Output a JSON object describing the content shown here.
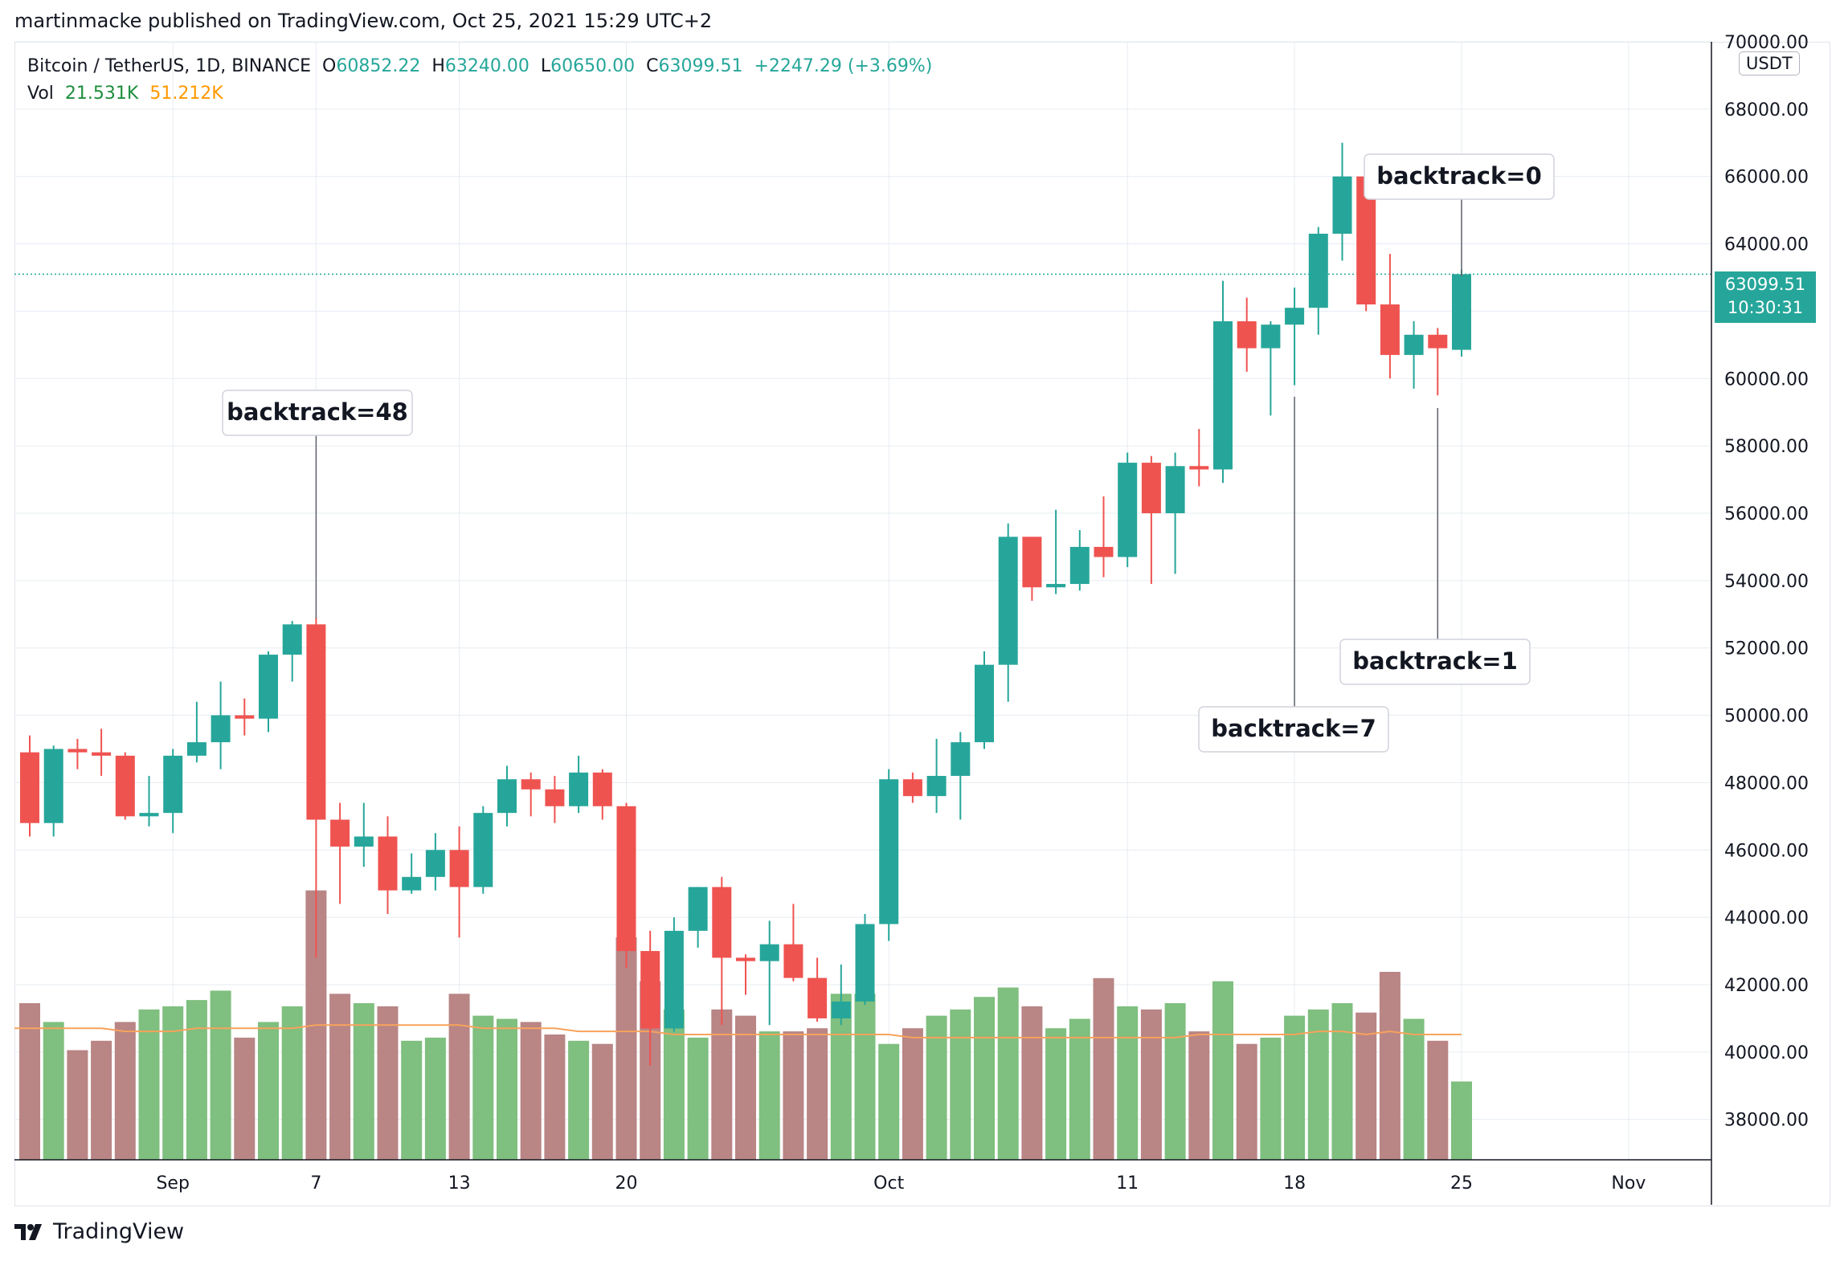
{
  "header": "martinmacke published on TradingView.com, Oct 25, 2021 15:29 UTC+2",
  "footer_brand": "TradingView",
  "legend": {
    "symbol": "Bitcoin / TetherUS, 1D, BINANCE",
    "o_label": "O",
    "o_value": "60852.22",
    "h_label": "H",
    "h_value": "63240.00",
    "l_label": "L",
    "l_value": "60650.00",
    "c_label": "C",
    "c_value": "63099.51",
    "change": "+2247.29 (+3.69%)",
    "vol_label": "Vol",
    "vol_value": "21.531K",
    "vol_ma": "51.212K"
  },
  "price_axis_unit": "USDT",
  "last_price_tag": {
    "price": "63099.51",
    "countdown": "10:30:31"
  },
  "colors": {
    "up": "#26a69a",
    "down": "#ef5350",
    "vol_up": "#7fbf7f",
    "vol_down": "#b98585",
    "ma": "#f7a35c",
    "grid": "#e6ecf2"
  },
  "chart_data": {
    "type": "candlestick",
    "symbol": "BTCUSDT",
    "timeframe": "1D",
    "y_axis": {
      "range": [
        36800,
        70000
      ],
      "ticks": [
        "38000.00",
        "40000.00",
        "42000.00",
        "44000.00",
        "46000.00",
        "48000.00",
        "50000.00",
        "52000.00",
        "54000.00",
        "56000.00",
        "58000.00",
        "60000.00",
        "62000.00",
        "64000.00",
        "66000.00",
        "68000.00",
        "70000.00"
      ]
    },
    "x_axis": {
      "start_date": "2021-08-26",
      "end_date": "2021-11-06",
      "ticks": [
        {
          "label": "Sep",
          "date": "2021-09-01"
        },
        {
          "label": "7",
          "date": "2021-09-07"
        },
        {
          "label": "13",
          "date": "2021-09-13"
        },
        {
          "label": "20",
          "date": "2021-09-20"
        },
        {
          "label": "Oct",
          "date": "2021-10-01"
        },
        {
          "label": "11",
          "date": "2021-10-11"
        },
        {
          "label": "18",
          "date": "2021-10-18"
        },
        {
          "label": "25",
          "date": "2021-10-25"
        },
        {
          "label": "Nov",
          "date": "2021-11-01"
        }
      ]
    },
    "candles": [
      {
        "date": "2021-08-26",
        "o": 48900,
        "h": 49400,
        "l": 46400,
        "c": 46800
      },
      {
        "date": "2021-08-27",
        "o": 46800,
        "h": 49100,
        "l": 46400,
        "c": 49000
      },
      {
        "date": "2021-08-28",
        "o": 49000,
        "h": 49300,
        "l": 48400,
        "c": 48900
      },
      {
        "date": "2021-08-29",
        "o": 48900,
        "h": 49600,
        "l": 48200,
        "c": 48800
      },
      {
        "date": "2021-08-30",
        "o": 48800,
        "h": 48900,
        "l": 46900,
        "c": 47000
      },
      {
        "date": "2021-08-31",
        "o": 47000,
        "h": 48200,
        "l": 46700,
        "c": 47100
      },
      {
        "date": "2021-09-01",
        "o": 47100,
        "h": 49000,
        "l": 46500,
        "c": 48800
      },
      {
        "date": "2021-09-02",
        "o": 48800,
        "h": 50400,
        "l": 48600,
        "c": 49200
      },
      {
        "date": "2021-09-03",
        "o": 49200,
        "h": 51000,
        "l": 48400,
        "c": 50000
      },
      {
        "date": "2021-09-04",
        "o": 50000,
        "h": 50500,
        "l": 49400,
        "c": 49900
      },
      {
        "date": "2021-09-05",
        "o": 49900,
        "h": 51900,
        "l": 49500,
        "c": 51800
      },
      {
        "date": "2021-09-06",
        "o": 51800,
        "h": 52800,
        "l": 51000,
        "c": 52700
      },
      {
        "date": "2021-09-07",
        "o": 52700,
        "h": 52900,
        "l": 42800,
        "c": 46900
      },
      {
        "date": "2021-09-08",
        "o": 46900,
        "h": 47400,
        "l": 44400,
        "c": 46100
      },
      {
        "date": "2021-09-09",
        "o": 46100,
        "h": 47400,
        "l": 45500,
        "c": 46400
      },
      {
        "date": "2021-09-10",
        "o": 46400,
        "h": 47000,
        "l": 44100,
        "c": 44800
      },
      {
        "date": "2021-09-11",
        "o": 44800,
        "h": 45900,
        "l": 44700,
        "c": 45200
      },
      {
        "date": "2021-09-12",
        "o": 45200,
        "h": 46500,
        "l": 44800,
        "c": 46000
      },
      {
        "date": "2021-09-13",
        "o": 46000,
        "h": 46700,
        "l": 43400,
        "c": 44900
      },
      {
        "date": "2021-09-14",
        "o": 44900,
        "h": 47300,
        "l": 44700,
        "c": 47100
      },
      {
        "date": "2021-09-15",
        "o": 47100,
        "h": 48500,
        "l": 46700,
        "c": 48100
      },
      {
        "date": "2021-09-16",
        "o": 48100,
        "h": 48300,
        "l": 47000,
        "c": 47800
      },
      {
        "date": "2021-09-17",
        "o": 47800,
        "h": 48200,
        "l": 46800,
        "c": 47300
      },
      {
        "date": "2021-09-18",
        "o": 47300,
        "h": 48800,
        "l": 47100,
        "c": 48300
      },
      {
        "date": "2021-09-19",
        "o": 48300,
        "h": 48400,
        "l": 46900,
        "c": 47300
      },
      {
        "date": "2021-09-20",
        "o": 47300,
        "h": 47400,
        "l": 42500,
        "c": 43000
      },
      {
        "date": "2021-09-21",
        "o": 43000,
        "h": 43600,
        "l": 39600,
        "c": 40700
      },
      {
        "date": "2021-09-22",
        "o": 40700,
        "h": 44000,
        "l": 40600,
        "c": 43600
      },
      {
        "date": "2021-09-23",
        "o": 43600,
        "h": 44900,
        "l": 43100,
        "c": 44900
      },
      {
        "date": "2021-09-24",
        "o": 44900,
        "h": 45200,
        "l": 40800,
        "c": 42800
      },
      {
        "date": "2021-09-25",
        "o": 42800,
        "h": 42900,
        "l": 41700,
        "c": 42700
      },
      {
        "date": "2021-09-26",
        "o": 42700,
        "h": 43900,
        "l": 40800,
        "c": 43200
      },
      {
        "date": "2021-09-27",
        "o": 43200,
        "h": 44400,
        "l": 42100,
        "c": 42200
      },
      {
        "date": "2021-09-28",
        "o": 42200,
        "h": 42800,
        "l": 40900,
        "c": 41000
      },
      {
        "date": "2021-09-29",
        "o": 41000,
        "h": 42600,
        "l": 40800,
        "c": 41500
      },
      {
        "date": "2021-09-30",
        "o": 41500,
        "h": 44100,
        "l": 41400,
        "c": 43800
      },
      {
        "date": "2021-10-01",
        "o": 43800,
        "h": 48400,
        "l": 43300,
        "c": 48100
      },
      {
        "date": "2021-10-02",
        "o": 48100,
        "h": 48300,
        "l": 47400,
        "c": 47600
      },
      {
        "date": "2021-10-03",
        "o": 47600,
        "h": 49300,
        "l": 47100,
        "c": 48200
      },
      {
        "date": "2021-10-04",
        "o": 48200,
        "h": 49500,
        "l": 46900,
        "c": 49200
      },
      {
        "date": "2021-10-05",
        "o": 49200,
        "h": 51900,
        "l": 49000,
        "c": 51500
      },
      {
        "date": "2021-10-06",
        "o": 51500,
        "h": 55700,
        "l": 50400,
        "c": 55300
      },
      {
        "date": "2021-10-07",
        "o": 55300,
        "h": 55300,
        "l": 53400,
        "c": 53800
      },
      {
        "date": "2021-10-08",
        "o": 53800,
        "h": 56100,
        "l": 53600,
        "c": 53900
      },
      {
        "date": "2021-10-09",
        "o": 53900,
        "h": 55500,
        "l": 53700,
        "c": 55000
      },
      {
        "date": "2021-10-10",
        "o": 55000,
        "h": 56500,
        "l": 54100,
        "c": 54700
      },
      {
        "date": "2021-10-11",
        "o": 54700,
        "h": 57800,
        "l": 54400,
        "c": 57500
      },
      {
        "date": "2021-10-12",
        "o": 57500,
        "h": 57700,
        "l": 53900,
        "c": 56000
      },
      {
        "date": "2021-10-13",
        "o": 56000,
        "h": 57800,
        "l": 54200,
        "c": 57400
      },
      {
        "date": "2021-10-14",
        "o": 57400,
        "h": 58500,
        "l": 56800,
        "c": 57300
      },
      {
        "date": "2021-10-15",
        "o": 57300,
        "h": 62900,
        "l": 56900,
        "c": 61700
      },
      {
        "date": "2021-10-16",
        "o": 61700,
        "h": 62400,
        "l": 60200,
        "c": 60900
      },
      {
        "date": "2021-10-17",
        "o": 60900,
        "h": 61700,
        "l": 58900,
        "c": 61600
      },
      {
        "date": "2021-10-18",
        "o": 61600,
        "h": 62700,
        "l": 59800,
        "c": 62100
      },
      {
        "date": "2021-10-19",
        "o": 62100,
        "h": 64500,
        "l": 61300,
        "c": 64300
      },
      {
        "date": "2021-10-20",
        "o": 64300,
        "h": 67000,
        "l": 63500,
        "c": 66000
      },
      {
        "date": "2021-10-21",
        "o": 66000,
        "h": 66600,
        "l": 62000,
        "c": 62200
      },
      {
        "date": "2021-10-22",
        "o": 62200,
        "h": 63700,
        "l": 60000,
        "c": 60700
      },
      {
        "date": "2021-10-23",
        "o": 60700,
        "h": 61700,
        "l": 59700,
        "c": 61300
      },
      {
        "date": "2021-10-24",
        "o": 61300,
        "h": 61500,
        "l": 59500,
        "c": 60900
      },
      {
        "date": "2021-10-25",
        "o": 60852.22,
        "h": 63240,
        "l": 60650,
        "c": 63099.51
      }
    ],
    "volume_relative": [
      50,
      44,
      35,
      38,
      44,
      48,
      49,
      51,
      54,
      39,
      44,
      49,
      86,
      53,
      50,
      49,
      38,
      39,
      53,
      46,
      45,
      44,
      40,
      38,
      37,
      71,
      57,
      48,
      39,
      48,
      46,
      41,
      41,
      42,
      53,
      53,
      37,
      42,
      46,
      48,
      52,
      55,
      49,
      42,
      45,
      58,
      49,
      48,
      50,
      41,
      57,
      37,
      39,
      46,
      48,
      50,
      47,
      60,
      45,
      38,
      25
    ],
    "volume_ma_relative": [
      42,
      42,
      42,
      42,
      41,
      41,
      41,
      42,
      42,
      42,
      42,
      42,
      43,
      43,
      43,
      43,
      43,
      43,
      43,
      42,
      42,
      42,
      42,
      41,
      41,
      41,
      41,
      40,
      40,
      40,
      40,
      40,
      40,
      40,
      40,
      40,
      40,
      39,
      39,
      39,
      39,
      39,
      39,
      39,
      39,
      39,
      39,
      39,
      39,
      40,
      40,
      40,
      40,
      40,
      41,
      41,
      40,
      41,
      40,
      40,
      40
    ],
    "annotations": [
      {
        "text": "backtrack=48",
        "date": "2021-09-07"
      },
      {
        "text": "backtrack=7",
        "date": "2021-10-18"
      },
      {
        "text": "backtrack=1",
        "date": "2021-10-24"
      },
      {
        "text": "backtrack=0",
        "date": "2021-10-25"
      }
    ],
    "last_price_line": 63099.51
  }
}
